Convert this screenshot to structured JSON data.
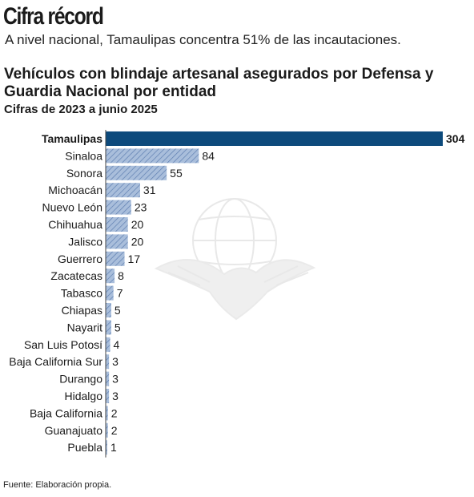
{
  "header": {
    "title": "Cifra récord",
    "subtitle": "A nivel nacional, Tamaulipas concentra 51% de las incautaciones."
  },
  "colors": {
    "highlight_bar": "#0d4a7c",
    "bar_fill": "#a9bedb",
    "bar_hatch": "#5f7fb1"
  },
  "watermark_icon": "eagle-globe-emblem-icon",
  "chart_data": {
    "type": "bar",
    "orientation": "horizontal",
    "title": "Vehículos con blindaje artesanal asegurados por Defensa y Guardia Nacional por entidad",
    "subtitle": "Cifras de 2023 a junio 2025",
    "categories": [
      "Tamaulipas",
      "Sinaloa",
      "Sonora",
      "Michoacán",
      "Nuevo León",
      "Chihuahua",
      "Jalisco",
      "Guerrero",
      "Zacatecas",
      "Tabasco",
      "Chiapas",
      "Nayarit",
      "San Luis Potosí",
      "Baja California Sur",
      "Durango",
      "Hidalgo",
      "Baja California",
      "Guanajuato",
      "Puebla"
    ],
    "values": [
      304,
      84,
      55,
      31,
      23,
      20,
      20,
      17,
      8,
      7,
      5,
      5,
      4,
      3,
      3,
      3,
      2,
      2,
      1
    ],
    "highlight_category": "Tamaulipas",
    "xlim": [
      0,
      304
    ],
    "grid": false
  },
  "footer": {
    "source": "Fuente: Elaboración propia."
  }
}
